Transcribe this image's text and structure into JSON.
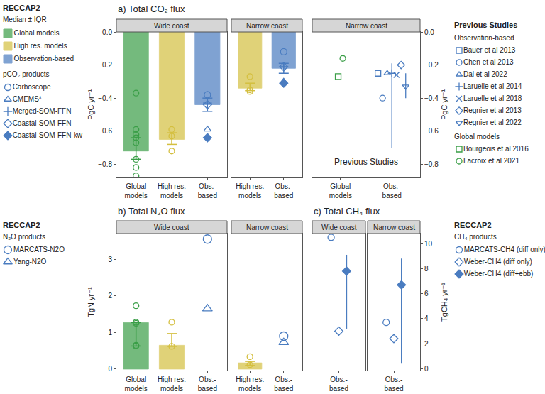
{
  "chart_data": [
    {
      "type": "bar",
      "title": "a) Total CO₂ flux",
      "y_label": "PgC yr⁻¹",
      "ylim": [
        -0.88,
        0
      ],
      "yticks": [
        {
          "value": 0,
          "label": "0.0"
        },
        {
          "value": -0.2,
          "label": "−0.2"
        },
        {
          "value": -0.4,
          "label": "−0.4"
        },
        {
          "value": -0.6,
          "label": "−0.6"
        },
        {
          "value": -0.8,
          "label": "−0.8"
        }
      ],
      "grid": false,
      "color": "#4a7cc0",
      "legend_title": "RECCAP2",
      "legend_subtitle": "Median ± IQR",
      "products_title": "pCO₂ products",
      "series": [
        {
          "name": "Global models",
          "color": "#3a9e47",
          "marker": "circle-open"
        },
        {
          "name": "High res. models",
          "color": "#d4bf3f",
          "marker": "circle-open"
        },
        {
          "name": "Observation-based",
          "color": "#4a7cc0",
          "marker": "circle-open"
        }
      ],
      "products": [
        {
          "name": "Carboscope",
          "marker": "circle-open"
        },
        {
          "name": "CMEMS*",
          "marker": "triangle-up-open"
        },
        {
          "name": "Merged-SOM-FFN",
          "marker": "cross-thin-open"
        },
        {
          "name": "Coastal-SOM-FFN",
          "marker": "diamond-open"
        },
        {
          "name": "Coastal-SOM-FFN-kw",
          "marker": "diamond"
        }
      ],
      "panels": [
        {
          "strip": "Wide coast",
          "categories": [
            "Global models",
            "High res. models",
            "Obs.-based"
          ],
          "groups": [
            {
              "series": "Global models",
              "value": -0.72,
              "iqr": [
                -0.77,
                -0.64
              ],
              "points": [
                -0.37,
                -0.59,
                -0.62,
                -0.64,
                -0.67,
                -0.77,
                -0.82,
                -0.87
              ]
            },
            {
              "series": "High res. models",
              "value": -0.65,
              "iqr": [
                -0.68,
                -0.61
              ],
              "points": [
                -0.59,
                -0.63,
                -0.72
              ]
            },
            {
              "series": "Observation-based",
              "value": -0.44,
              "iqr": [
                -0.48,
                -0.4
              ],
              "product_points": [
                {
                  "product": "Carboscope",
                  "value": -0.38
                },
                {
                  "product": "Merged-SOM-FFN",
                  "value": -0.43
                },
                {
                  "product": "Coastal-SOM-FFN",
                  "value": -0.44
                },
                {
                  "product": "CMEMS*",
                  "value": -0.59
                },
                {
                  "product": "Coastal-SOM-FFN-kw",
                  "value": -0.64
                }
              ]
            }
          ]
        },
        {
          "strip": "Narrow coast",
          "categories": [
            "High res. models",
            "Obs.-based"
          ],
          "groups": [
            {
              "series": "High res. models",
              "value": -0.34,
              "iqr": [
                -0.355,
                -0.31
              ],
              "points": [
                -0.27,
                -0.35,
                -0.36
              ]
            },
            {
              "series": "Observation-based",
              "value": -0.22,
              "iqr": [
                -0.25,
                -0.19
              ],
              "product_points": [
                {
                  "product": "Carboscope",
                  "value": -0.12
                },
                {
                  "product": "Merged-SOM-FFN",
                  "value": -0.21
                },
                {
                  "product": "Coastal-SOM-FFN",
                  "value": -0.21
                },
                {
                  "product": "CMEMS*",
                  "value": -0.3
                },
                {
                  "product": "Coastal-SOM-FFN-kw",
                  "value": -0.31
                }
              ]
            }
          ]
        },
        {
          "strip": "Narrow coast",
          "note": "Previous Studies",
          "legend_title": "Previous Studies",
          "categories": [
            "Global models",
            "Obs.-based"
          ],
          "studies": [
            {
              "name": "Bauer et al 2013",
              "group": "Observation-based",
              "category": "Obs.-based",
              "marker": "square-open",
              "value": -0.25
            },
            {
              "name": "Chen et al 2013",
              "group": "Observation-based",
              "category": "Obs.-based",
              "marker": "circle-open",
              "value": -0.4
            },
            {
              "name": "Dai et al 2022",
              "group": "Observation-based",
              "category": "Obs.-based",
              "marker": "triangle-up-open",
              "value": -0.25
            },
            {
              "name": "Laruelle et al 2014",
              "group": "Observation-based",
              "category": "Obs.-based",
              "marker": "cross-thin-open",
              "value": -0.25,
              "range": [
                -0.7,
                -0.19
              ]
            },
            {
              "name": "Laruelle et al 2018",
              "group": "Observation-based",
              "category": "Obs.-based",
              "marker": "x-thin-open",
              "value": -0.26
            },
            {
              "name": "Regnier et al 2013",
              "group": "Observation-based",
              "category": "Obs.-based",
              "marker": "diamond-open",
              "value": -0.2
            },
            {
              "name": "Regnier et al 2022",
              "group": "Observation-based",
              "category": "Obs.-based",
              "marker": "triangle-down-open",
              "value": -0.33,
              "range": [
                -0.4,
                -0.25
              ]
            },
            {
              "name": "Bourgeois et al 2016",
              "group": "Global models",
              "category": "Global models",
              "marker": "square-open",
              "value": -0.27
            },
            {
              "name": "Lacroix et al 2021",
              "group": "Global models",
              "category": "Global models",
              "marker": "circle-open",
              "value": -0.16
            }
          ]
        }
      ]
    },
    {
      "type": "bar",
      "title": "b) Total N₂O flux",
      "y_label": "TgN yr⁻¹",
      "ylim": [
        -0.04,
        3.7
      ],
      "yticks": [
        0,
        1,
        2,
        3
      ],
      "grid": false,
      "color": "#4a7cc0",
      "legend_title": "RECCAP2",
      "products_title": "N₂O products",
      "series": [
        {
          "name": "Global models",
          "color": "#3a9e47",
          "marker": "circle-open"
        },
        {
          "name": "High res. models",
          "color": "#d4bf3f",
          "marker": "circle-open"
        },
        {
          "name": "Observation-based",
          "color": "#4a7cc0",
          "marker": "circle-open"
        }
      ],
      "products": [
        {
          "name": "MARCATS-N2O",
          "marker": "circle-open"
        },
        {
          "name": "Yang-N2O",
          "marker": "triangle-up-open"
        }
      ],
      "panels": [
        {
          "strip": "Wide coast",
          "categories": [
            "Global models",
            "High res. models",
            "Obs.-based"
          ],
          "groups": [
            {
              "series": "Global models",
              "value": 1.27,
              "iqr": [
                0.63,
                1.27
              ],
              "points": [
                0.63,
                0.65,
                1.25,
                1.28,
                1.73
              ]
            },
            {
              "series": "High res. models",
              "value": 0.65,
              "iqr": [
                0.62,
                0.97
              ],
              "points": [
                0.62,
                1.28
              ]
            },
            {
              "series": "Observation-based",
              "product_points": [
                {
                  "product": "MARCATS-N2O",
                  "value": 3.55
                },
                {
                  "product": "Yang-N2O",
                  "value": 1.65
                }
              ]
            }
          ]
        },
        {
          "strip": "Narrow coast",
          "categories": [
            "High res. models",
            "Obs.-based"
          ],
          "groups": [
            {
              "series": "High res. models",
              "value": 0.17,
              "iqr": [
                0.1,
                0.21
              ],
              "points": [
                0.12,
                0.34
              ]
            },
            {
              "series": "Observation-based",
              "product_points": [
                {
                  "product": "MARCATS-N2O",
                  "value": 0.9
                },
                {
                  "product": "Yang-N2O",
                  "value": 0.73
                }
              ]
            }
          ]
        }
      ]
    },
    {
      "type": "scatter",
      "title": "c) Total CH₄ flux",
      "y_label": "TgCH₄ yr⁻¹",
      "ylim": [
        -0.15,
        10.8
      ],
      "yticks": [
        0,
        2,
        4,
        6,
        8,
        10
      ],
      "grid": false,
      "color": "#4a7cc0",
      "legend_title": "RECCAP2",
      "products_title": "CH₄ products",
      "products": [
        {
          "name": "MARCATS-CH4 (diff only)",
          "marker": "circle-open"
        },
        {
          "name": "Weber-CH4 (diff only)",
          "marker": "diamond-open"
        },
        {
          "name": "Weber-CH4 (diff+ebb)",
          "marker": "diamond"
        }
      ],
      "panels": [
        {
          "strip": "Wide coast",
          "categories": [
            "Obs.-based"
          ],
          "groups": [
            {
              "product_points": [
                {
                  "product": "MARCATS-CH4 (diff only)",
                  "value": 10.5
                },
                {
                  "product": "Weber-CH4 (diff only)",
                  "value": 3.0
                },
                {
                  "product": "Weber-CH4 (diff+ebb)",
                  "value": 7.8,
                  "range": [
                    3.2,
                    9.1
                  ]
                }
              ]
            }
          ]
        },
        {
          "strip": "Narrow coast",
          "categories": [
            "Obs.-based"
          ],
          "groups": [
            {
              "product_points": [
                {
                  "product": "MARCATS-CH4 (diff only)",
                  "value": 3.7
                },
                {
                  "product": "Weber-CH4 (diff only)",
                  "value": 2.4
                },
                {
                  "product": "Weber-CH4 (diff+ebb)",
                  "value": 6.7,
                  "range": [
                    0.4,
                    8.8
                  ]
                }
              ]
            }
          ]
        }
      ]
    }
  ]
}
